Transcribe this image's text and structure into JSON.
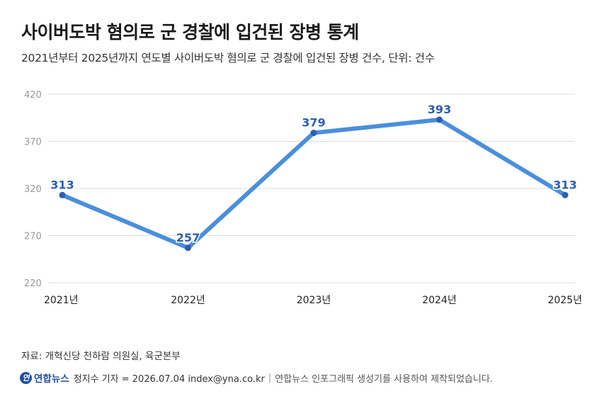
{
  "header": {
    "title": "사이버도박 혐의로 군 경찰에 입건된 장병 통계",
    "subtitle": "2021년부터 2025년까지 연도별 사이버도박 혐의로 군 경찰에 입건된 장병 건수, 단위: 건수"
  },
  "chart_data": {
    "type": "line",
    "title": "사이버도박 혐의로 군 경찰에 입건된 장병 통계",
    "subtitle": "2021년부터 2025년까지 연도별 사이버도박 혐의로 군 경찰에 입건된 장병 건수, 단위: 건수",
    "categories": [
      "2021년",
      "2022년",
      "2023년",
      "2024년",
      "2025년"
    ],
    "values": [
      313,
      257,
      379,
      393,
      313
    ],
    "value_labels": [
      "313",
      "257",
      "379",
      "393",
      "313"
    ],
    "ylim": [
      220,
      420
    ],
    "yticks": [
      220,
      270,
      320,
      370,
      420
    ],
    "ytick_labels": [
      "220",
      "270",
      "320",
      "370",
      "420"
    ],
    "xlabel": "",
    "ylabel": "",
    "grid": true,
    "legend": "none",
    "colors": {
      "line": "#4a8fdb",
      "marker": "#2c5fb0",
      "label": "#2c5fb0",
      "grid": "#dddddd",
      "tick": "#999999"
    }
  },
  "footer": {
    "source": "자료: 개혁신당 천하람 의원실, 육군본부",
    "logo_mark": "연",
    "logo_text": "연합뉴스",
    "reporter": "정지수 기자 = 2026.07.04 index@yna.co.kr",
    "separator": "|",
    "note": "연합뉴스 인포그래픽 생성기를 사용하여 제작되었습니다."
  }
}
